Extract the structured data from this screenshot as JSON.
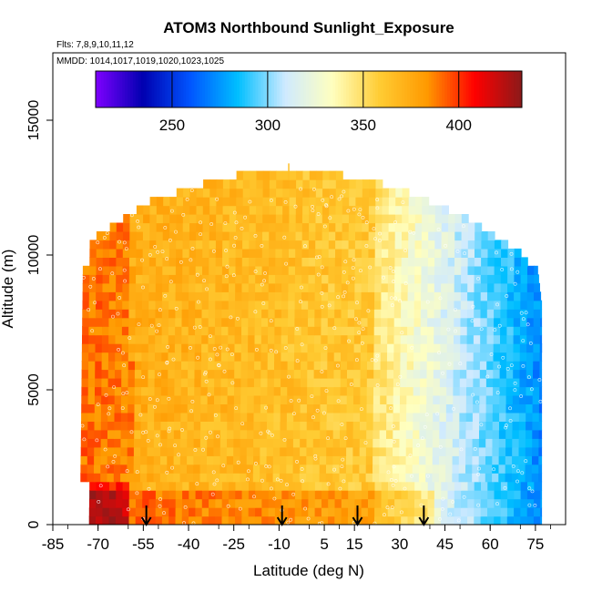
{
  "chart_data": {
    "type": "heatmap",
    "title": "ATOM3 Northbound Sunlight_Exposure",
    "flights_note": "Flts: 7,8,9,10,11,12",
    "dates_note": "MMDD: 1014,1017,1019,1020,1023,1025",
    "xlabel": "Latitude (deg N)",
    "ylabel": "Altitude (m)",
    "xlim": [
      -85,
      85
    ],
    "ylim": [
      0,
      17500
    ],
    "x_ticks": [
      -85,
      -70,
      -55,
      -40,
      -25,
      -10,
      5,
      15,
      30,
      45,
      60,
      75
    ],
    "y_ticks": [
      0,
      5000,
      10000,
      15000
    ],
    "colorbar": {
      "range": [
        210,
        433
      ],
      "ticks": [
        250,
        300,
        350,
        400
      ],
      "colors": [
        "#7f00ff",
        "#0000b0",
        "#0055ff",
        "#00bfff",
        "#cfeaff",
        "#ffffbf",
        "#ffcc33",
        "#ff9900",
        "#ff0000",
        "#8b1a1a"
      ]
    },
    "arrow_latitudes": [
      -54,
      -9,
      16,
      38
    ],
    "grid": false
  }
}
